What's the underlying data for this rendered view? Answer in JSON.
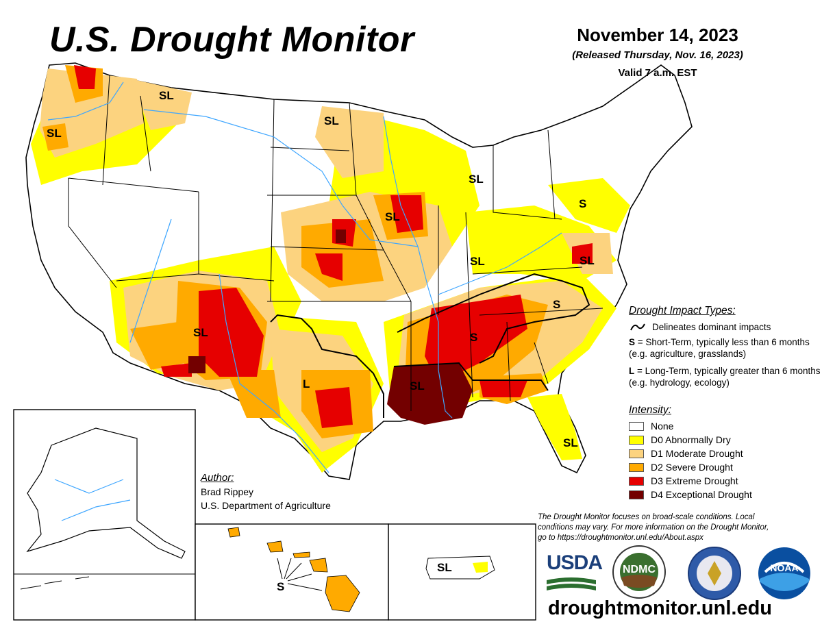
{
  "title": "U.S. Drought Monitor",
  "date": "November 14, 2023",
  "released": "(Released Thursday, Nov. 16, 2023)",
  "valid": "Valid 7 a.m. EST",
  "map_labels": [
    "SL",
    "SL",
    "SL",
    "SL",
    "SL",
    "S",
    "SL",
    "SL",
    "SL",
    "S",
    "S",
    "SL",
    "L",
    "SL",
    "SL",
    "S",
    "SL"
  ],
  "legend_impact": {
    "title": "Drought Impact Types:",
    "delineates": "Delineates dominant impacts",
    "s_key": "S",
    "s_text": " = Short-Term, typically less than 6 months (e.g. agriculture, grasslands)",
    "l_key": "L",
    "l_text": " = Long-Term, typically greater than 6 months (e.g. hydrology, ecology)"
  },
  "legend_intensity": {
    "title": "Intensity:",
    "items": [
      {
        "label": "None",
        "color": "#ffffff"
      },
      {
        "label": "D0 Abnormally Dry",
        "color": "#ffff00"
      },
      {
        "label": "D1 Moderate Drought",
        "color": "#fcd37f"
      },
      {
        "label": "D2 Severe Drought",
        "color": "#ffaa00"
      },
      {
        "label": "D3 Extreme Drought",
        "color": "#e60000"
      },
      {
        "label": "D4 Exceptional Drought",
        "color": "#730000"
      }
    ]
  },
  "author": {
    "heading": "Author:",
    "name": "Brad Rippey",
    "org": "U.S. Department of Agriculture"
  },
  "note": "The Drought Monitor focuses on broad-scale conditions. Local conditions may vary. For more information on the Drought Monitor, go to https://droughtmonitor.unl.edu/About.aspx",
  "logos": {
    "usda": "USDA",
    "ndmc": "NDMC",
    "noaa": "NOAA"
  },
  "url": "droughtmonitor.unl.edu"
}
